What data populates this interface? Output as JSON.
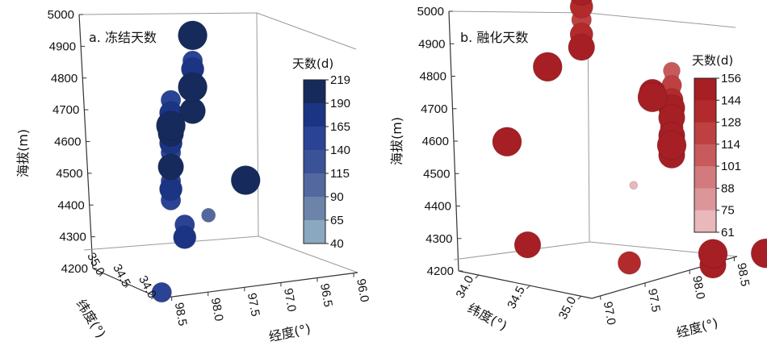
{
  "chart_data": [
    {
      "type": "scatter",
      "title": "a. 冻结天数",
      "zlabel": "海拔(m)",
      "xlabel": "经度(°)",
      "ylabel": "纬度(°)",
      "zlim": [
        4200,
        5000
      ],
      "z_ticks": [
        "4200",
        "4300",
        "4400",
        "4500",
        "4600",
        "4700",
        "4800",
        "4900",
        "5000"
      ],
      "x_ticks": [
        "98.5",
        "98.0",
        "97.5",
        "97.0",
        "96.5",
        "96.0"
      ],
      "y_ticks": [
        "35.0",
        "34.5",
        "34.0"
      ],
      "colorbar": {
        "title": "天数(d)",
        "ticks": [
          "219",
          "190",
          "165",
          "140",
          "115",
          "90",
          "65",
          "40"
        ],
        "colors": [
          "#162A5C",
          "#1B3584",
          "#2A4394",
          "#3A5298",
          "#53689F",
          "#6C84AA",
          "#8AA8C0"
        ]
      },
      "points": [
        {
          "lon": 97.62,
          "lat": 34.45,
          "elev": 4948,
          "days": 219
        },
        {
          "lon": 97.62,
          "lat": 34.45,
          "elev": 4868,
          "days": 140
        },
        {
          "lon": 97.62,
          "lat": 34.45,
          "elev": 4842,
          "days": 165
        },
        {
          "lon": 97.62,
          "lat": 34.45,
          "elev": 4785,
          "days": 219
        },
        {
          "lon": 97.62,
          "lat": 34.45,
          "elev": 4710,
          "days": 190
        },
        {
          "lon": 97.98,
          "lat": 34.55,
          "elev": 4765,
          "days": 140
        },
        {
          "lon": 97.98,
          "lat": 34.55,
          "elev": 4725,
          "days": 165
        },
        {
          "lon": 97.98,
          "lat": 34.55,
          "elev": 4685,
          "days": 219
        },
        {
          "lon": 97.98,
          "lat": 34.55,
          "elev": 4660,
          "days": 190
        },
        {
          "lon": 97.98,
          "lat": 34.55,
          "elev": 4630,
          "days": 165
        },
        {
          "lon": 97.98,
          "lat": 34.55,
          "elev": 4600,
          "days": 140
        },
        {
          "lon": 97.98,
          "lat": 34.55,
          "elev": 4575,
          "days": 115
        },
        {
          "lon": 97.98,
          "lat": 34.55,
          "elev": 4555,
          "days": 190
        },
        {
          "lon": 97.98,
          "lat": 34.55,
          "elev": 4530,
          "days": 90
        },
        {
          "lon": 97.98,
          "lat": 34.55,
          "elev": 4510,
          "days": 140
        },
        {
          "lon": 97.98,
          "lat": 34.55,
          "elev": 4485,
          "days": 165
        },
        {
          "lon": 97.98,
          "lat": 34.55,
          "elev": 4450,
          "days": 140
        },
        {
          "lon": 96.95,
          "lat": 34.45,
          "elev": 4470,
          "days": 219
        },
        {
          "lon": 97.72,
          "lat": 34.45,
          "elev": 4355,
          "days": 140
        },
        {
          "lon": 97.72,
          "lat": 34.45,
          "elev": 4315,
          "days": 165
        },
        {
          "lon": 97.42,
          "lat": 34.45,
          "elev": 4375,
          "days": 90
        },
        {
          "lon": 98.35,
          "lat": 34.85,
          "elev": 4200,
          "days": 140
        }
      ]
    },
    {
      "type": "scatter",
      "title": "b. 融化天数",
      "zlabel": "海拔(m)",
      "xlabel": "经度(°)",
      "ylabel": "纬度(°)",
      "zlim": [
        4200,
        5000
      ],
      "z_ticks": [
        "4200",
        "4300",
        "4400",
        "4500",
        "4600",
        "4700",
        "4800",
        "4900",
        "5000"
      ],
      "x_ticks": [
        "97.0",
        "97.5",
        "98.0",
        "98.5"
      ],
      "y_ticks": [
        "34.0",
        "34.5",
        "35.0"
      ],
      "colorbar": {
        "title": "天数(d)",
        "ticks": [
          "156",
          "144",
          "128",
          "114",
          "101",
          "88",
          "75",
          "61"
        ],
        "colors": [
          "#A51F24",
          "#B22A2C",
          "#BE4041",
          "#C85A5C",
          "#D27A7D",
          "#DC9598",
          "#E8B8BB"
        ]
      },
      "points": [
        {
          "lon": 98.2,
          "lat": 34.05,
          "elev": 4960,
          "days": 144
        },
        {
          "lon": 98.2,
          "lat": 34.05,
          "elev": 4915,
          "days": 128
        },
        {
          "lon": 98.2,
          "lat": 34.05,
          "elev": 4875,
          "days": 114
        },
        {
          "lon": 98.2,
          "lat": 34.05,
          "elev": 4830,
          "days": 128
        },
        {
          "lon": 98.2,
          "lat": 34.05,
          "elev": 4790,
          "days": 144
        },
        {
          "lon": 97.85,
          "lat": 34.05,
          "elev": 4760,
          "days": 156
        },
        {
          "lon": 98.1,
          "lat": 34.8,
          "elev": 4790,
          "days": 101
        },
        {
          "lon": 98.1,
          "lat": 34.8,
          "elev": 4770,
          "days": 88
        },
        {
          "lon": 98.1,
          "lat": 34.8,
          "elev": 4745,
          "days": 114
        },
        {
          "lon": 98.1,
          "lat": 34.8,
          "elev": 4725,
          "days": 101
        },
        {
          "lon": 98.1,
          "lat": 34.8,
          "elev": 4700,
          "days": 128
        },
        {
          "lon": 98.1,
          "lat": 34.8,
          "elev": 4675,
          "days": 144
        },
        {
          "lon": 98.1,
          "lat": 34.8,
          "elev": 4645,
          "days": 144
        },
        {
          "lon": 98.1,
          "lat": 34.8,
          "elev": 4615,
          "days": 128
        },
        {
          "lon": 98.1,
          "lat": 34.8,
          "elev": 4590,
          "days": 144
        },
        {
          "lon": 98.1,
          "lat": 34.8,
          "elev": 4560,
          "days": 156
        },
        {
          "lon": 98.1,
          "lat": 34.8,
          "elev": 4530,
          "days": 144
        },
        {
          "lon": 97.9,
          "lat": 34.8,
          "elev": 4740,
          "days": 144
        },
        {
          "lon": 97.9,
          "lat": 34.8,
          "elev": 4725,
          "days": 156
        },
        {
          "lon": 97.5,
          "lat": 34.0,
          "elev": 4555,
          "days": 156
        },
        {
          "lon": 98.05,
          "lat": 34.55,
          "elev": 4420,
          "days": 61
        },
        {
          "lon": 97.3,
          "lat": 34.3,
          "elev": 4280,
          "days": 144
        },
        {
          "lon": 97.8,
          "lat": 34.7,
          "elev": 4215,
          "days": 128
        },
        {
          "lon": 98.25,
          "lat": 35.0,
          "elev": 4230,
          "days": 156
        },
        {
          "lon": 98.25,
          "lat": 35.0,
          "elev": 4195,
          "days": 144
        },
        {
          "lon": 98.45,
          "lat": 35.25,
          "elev": 4235,
          "days": 156
        }
      ]
    }
  ]
}
